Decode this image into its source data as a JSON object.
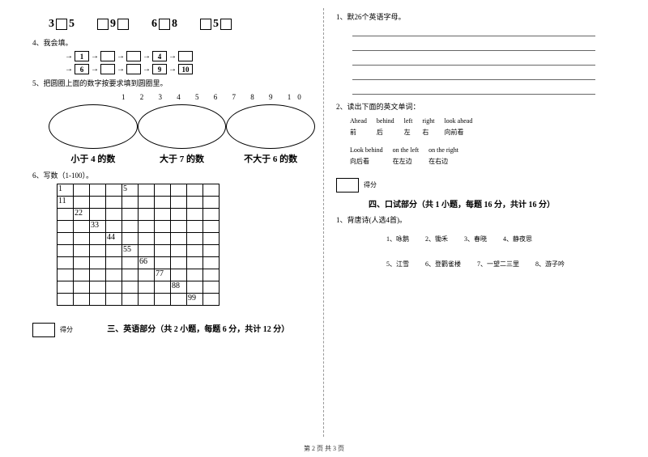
{
  "boxes": {
    "s1_a": "3",
    "s1_b": "5",
    "s2_a": "9",
    "s3_a": "6",
    "s3_b": "8",
    "s4_a": "5"
  },
  "q4": "4、我会填。",
  "seq1": {
    "a": "1",
    "b": "4"
  },
  "seq2": {
    "a": "6",
    "b": "9",
    "c": "10"
  },
  "q5": "5、把圆圈上面的数字按要求填到圆圈里。",
  "nums": "1 2 3 4 5 6 7 8 9 10",
  "ov1": "小于 4 的数",
  "ov2": "大于 7 的数",
  "ov3": "不大于 6 的数",
  "q6": "6、写数（1-100）。",
  "diag": [
    "1",
    "11",
    "22",
    "33",
    "44",
    "55",
    "66",
    "77",
    "88",
    "99"
  ],
  "startcol": [
    0,
    0,
    1,
    2,
    3,
    4,
    5,
    6,
    7,
    8
  ],
  "g5": "5",
  "score": "得分",
  "sec3": "三、英语部分（共 2 小题，每题 6 分，共计 12 分）",
  "r1": "1、默26个英语字母。",
  "r2": "2、读出下面的英文单词：",
  "w1": [
    "Ahead",
    "behind",
    "left",
    "right",
    "look ahead"
  ],
  "w1c": [
    "前",
    "后",
    "左",
    "右",
    "向前看"
  ],
  "w2": [
    "Look behind",
    "on the left",
    "on the right"
  ],
  "w2c": [
    "向后看",
    "在左边",
    "在右边"
  ],
  "sec4": "四、口试部分（共 1 小题，每题 16 分，共计 16 分）",
  "r3": "1、背唐诗(人选4首)。",
  "p1": [
    "1、咏鹅",
    "2、锄禾",
    "3、春晓",
    "4、静夜思"
  ],
  "p2": [
    "5、江雪",
    "6、登鹳雀楼",
    "7、一望二三里",
    "8、游子吟"
  ],
  "footer": "第 2 页 共 3 页"
}
